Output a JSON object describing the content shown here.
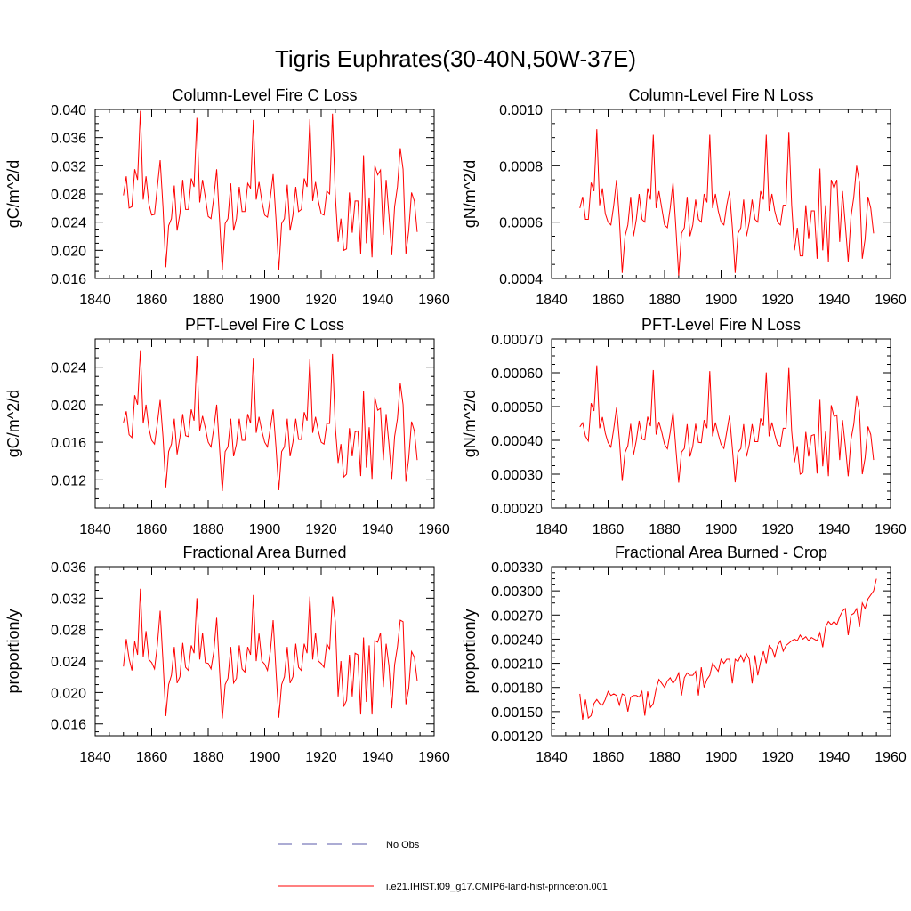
{
  "main_title": "Tigris Euphrates(30-40N,50W-37E)",
  "legend": [
    {
      "label": "No Obs",
      "color": "#5a5aa8",
      "dash": "dashed"
    },
    {
      "label": "i.e21.IHIST.f09_g17.CMIP6-land-hist-princeton.001",
      "color": "#ff0000",
      "dash": "solid"
    }
  ],
  "chart_data": [
    {
      "type": "line",
      "title": "Column-Level Fire C Loss",
      "ylabel": "gC/m^2/d",
      "xlim": [
        1840,
        1960
      ],
      "ylim": [
        0.016,
        0.04
      ],
      "xticks": [
        "1840",
        "1860",
        "1880",
        "1900",
        "1920",
        "1940",
        "1960"
      ],
      "yticks": [
        "0.016",
        "0.020",
        "0.024",
        "0.028",
        "0.032",
        "0.036",
        "0.040"
      ],
      "x_start": 1850,
      "series": [
        {
          "color": "#ff0000",
          "values": [
            0.0278,
            0.0305,
            0.026,
            0.0262,
            0.0315,
            0.03,
            0.0398,
            0.0272,
            0.0305,
            0.0266,
            0.025,
            0.0251,
            0.029,
            0.0328,
            0.0262,
            0.0176,
            0.0235,
            0.0245,
            0.0292,
            0.0228,
            0.0252,
            0.03,
            0.0258,
            0.0258,
            0.0302,
            0.029,
            0.0388,
            0.0268,
            0.03,
            0.0275,
            0.0248,
            0.0245,
            0.0275,
            0.0315,
            0.0245,
            0.0172,
            0.0238,
            0.0245,
            0.0295,
            0.0228,
            0.0245,
            0.029,
            0.0255,
            0.0255,
            0.0295,
            0.0288,
            0.0385,
            0.0272,
            0.0297,
            0.027,
            0.025,
            0.0247,
            0.0275,
            0.0308,
            0.0245,
            0.0172,
            0.0238,
            0.0245,
            0.0293,
            0.0228,
            0.025,
            0.029,
            0.0255,
            0.0258,
            0.0302,
            0.029,
            0.0386,
            0.027,
            0.0297,
            0.027,
            0.0252,
            0.025,
            0.0284,
            0.028,
            0.0394,
            0.0278,
            0.0212,
            0.0245,
            0.02,
            0.0202,
            0.0282,
            0.0225,
            0.027,
            0.027,
            0.0195,
            0.0335,
            0.021,
            0.0275,
            0.019,
            0.032,
            0.0307,
            0.0314,
            0.0222,
            0.03,
            0.025,
            0.0193,
            0.0262,
            0.029,
            0.0345,
            0.0315,
            0.0195,
            0.0228,
            0.0282,
            0.027,
            0.0226
          ]
        }
      ]
    },
    {
      "type": "line",
      "title": "Column-Level Fire N Loss",
      "ylabel": "gN/m^2/d",
      "xlim": [
        1840,
        1960
      ],
      "ylim": [
        0.0004,
        0.001
      ],
      "xticks": [
        "1840",
        "1860",
        "1880",
        "1900",
        "1920",
        "1940",
        "1960"
      ],
      "yticks": [
        "0.0004",
        "0.0006",
        "0.0008",
        "0.0010"
      ],
      "x_start": 1850,
      "series": [
        {
          "color": "#ff0000",
          "values": [
            0.00065,
            0.00069,
            0.00061,
            0.00061,
            0.00074,
            0.00071,
            0.00093,
            0.00066,
            0.00072,
            0.00063,
            0.0006,
            0.00059,
            0.00066,
            0.00075,
            0.00061,
            0.00042,
            0.00055,
            0.00059,
            0.00069,
            0.00055,
            0.00061,
            0.0007,
            0.00061,
            0.0006,
            0.00072,
            0.00068,
            0.00091,
            0.00065,
            0.00071,
            0.00065,
            0.00059,
            0.00058,
            0.00065,
            0.00074,
            0.00058,
            0.00041,
            0.00056,
            0.00058,
            0.00069,
            0.00055,
            0.00059,
            0.00068,
            0.00061,
            0.0006,
            0.0007,
            0.00067,
            0.00091,
            0.00065,
            0.0007,
            0.00064,
            0.0006,
            0.00059,
            0.00066,
            0.00071,
            0.00058,
            0.00042,
            0.00056,
            0.00058,
            0.00068,
            0.00055,
            0.0006,
            0.00068,
            0.00061,
            0.0006,
            0.00071,
            0.00068,
            0.00091,
            0.00064,
            0.0007,
            0.00064,
            0.0006,
            0.00059,
            0.00066,
            0.00066,
            0.00092,
            0.00066,
            0.0005,
            0.00058,
            0.00048,
            0.00048,
            0.00066,
            0.00054,
            0.00064,
            0.00064,
            0.00047,
            0.00079,
            0.0005,
            0.00066,
            0.00046,
            0.00075,
            0.00072,
            0.00075,
            0.00053,
            0.00071,
            0.00059,
            0.00046,
            0.00062,
            0.00069,
            0.0008,
            0.00074,
            0.00047,
            0.00054,
            0.00069,
            0.00065,
            0.00056
          ]
        }
      ]
    },
    {
      "type": "line",
      "title": "PFT-Level Fire C Loss",
      "ylabel": "gC/m^2/d",
      "xlim": [
        1840,
        1960
      ],
      "ylim": [
        0.009,
        0.027
      ],
      "xticks": [
        "1840",
        "1860",
        "1880",
        "1900",
        "1920",
        "1940",
        "1960"
      ],
      "yticks": [
        "0.012",
        "0.016",
        "0.020",
        "0.024"
      ],
      "x_start": 1850,
      "series": [
        {
          "color": "#ff0000",
          "values": [
            0.0181,
            0.0193,
            0.0168,
            0.0165,
            0.021,
            0.02,
            0.0258,
            0.018,
            0.02,
            0.0175,
            0.0162,
            0.0158,
            0.018,
            0.0205,
            0.0166,
            0.0112,
            0.015,
            0.0158,
            0.0185,
            0.0147,
            0.0165,
            0.019,
            0.0167,
            0.0166,
            0.0195,
            0.0183,
            0.0252,
            0.0172,
            0.0188,
            0.0175,
            0.016,
            0.0155,
            0.0175,
            0.02,
            0.0155,
            0.0108,
            0.015,
            0.0155,
            0.0185,
            0.0145,
            0.0158,
            0.0185,
            0.0162,
            0.0162,
            0.019,
            0.018,
            0.025,
            0.017,
            0.0187,
            0.0172,
            0.016,
            0.0155,
            0.0175,
            0.0195,
            0.0155,
            0.0109,
            0.015,
            0.0155,
            0.0185,
            0.0145,
            0.016,
            0.0185,
            0.0163,
            0.0163,
            0.0192,
            0.0183,
            0.0249,
            0.017,
            0.0187,
            0.0172,
            0.016,
            0.0158,
            0.018,
            0.018,
            0.0254,
            0.0176,
            0.0138,
            0.0158,
            0.0123,
            0.0126,
            0.0175,
            0.0145,
            0.0171,
            0.0172,
            0.0124,
            0.0215,
            0.0133,
            0.0176,
            0.0121,
            0.0208,
            0.0194,
            0.0196,
            0.0141,
            0.019,
            0.0158,
            0.0121,
            0.0166,
            0.0185,
            0.0223,
            0.02,
            0.0118,
            0.0143,
            0.0182,
            0.0172,
            0.0141
          ]
        }
      ]
    },
    {
      "type": "line",
      "title": "PFT-Level Fire N Loss",
      "ylabel": "gN/m^2/d",
      "xlim": [
        1840,
        1960
      ],
      "ylim": [
        0.0002,
        0.0007
      ],
      "xticks": [
        "1840",
        "1860",
        "1880",
        "1900",
        "1920",
        "1940",
        "1960"
      ],
      "yticks": [
        "0.00020",
        "0.00030",
        "0.00040",
        "0.00050",
        "0.00060",
        "0.00070"
      ],
      "x_start": 1850,
      "series": [
        {
          "color": "#ff0000",
          "values": [
            0.00044,
            0.000452,
            0.000412,
            0.000398,
            0.00051,
            0.000487,
            0.000622,
            0.000436,
            0.000469,
            0.000421,
            0.000393,
            0.00038,
            0.000434,
            0.000497,
            0.000402,
            0.00028,
            0.000364,
            0.000384,
            0.000449,
            0.000357,
            0.0004,
            0.000458,
            0.000404,
            0.000401,
            0.00047,
            0.000442,
            0.000608,
            0.000417,
            0.000455,
            0.000424,
            0.000388,
            0.000375,
            0.000424,
            0.000484,
            0.000375,
            0.000275,
            0.000365,
            0.000376,
            0.000448,
            0.000352,
            0.000383,
            0.000449,
            0.000394,
            0.000393,
            0.00046,
            0.000436,
            0.000605,
            0.000412,
            0.000453,
            0.000418,
            0.000388,
            0.000376,
            0.000424,
            0.000473,
            0.000376,
            0.000276,
            0.000365,
            0.000376,
            0.000448,
            0.000352,
            0.000388,
            0.000448,
            0.000396,
            0.000396,
            0.000465,
            0.000443,
            0.000601,
            0.000412,
            0.000453,
            0.000417,
            0.000388,
            0.000383,
            0.000436,
            0.000436,
            0.000614,
            0.000427,
            0.000335,
            0.000383,
            0.0003,
            0.000305,
            0.000425,
            0.000352,
            0.000414,
            0.000417,
            0.000302,
            0.00052,
            0.000323,
            0.000426,
            0.000294,
            0.000504,
            0.00047,
            0.000475,
            0.000342,
            0.00046,
            0.000383,
            0.000294,
            0.000403,
            0.000448,
            0.000532,
            0.000486,
            0.0003,
            0.000348,
            0.000441,
            0.000417,
            0.000342
          ]
        }
      ]
    },
    {
      "type": "line",
      "title": "Fractional Area Burned",
      "ylabel": "proportion/y",
      "xlim": [
        1840,
        1960
      ],
      "ylim": [
        0.0145,
        0.036
      ],
      "xticks": [
        "1840",
        "1860",
        "1880",
        "1900",
        "1920",
        "1940",
        "1960"
      ],
      "yticks": [
        "0.016",
        "0.020",
        "0.024",
        "0.028",
        "0.032",
        "0.036"
      ],
      "x_start": 1850,
      "series": [
        {
          "color": "#ff0000",
          "values": [
            0.0233,
            0.0268,
            0.0243,
            0.0228,
            0.0265,
            0.0248,
            0.0332,
            0.0245,
            0.0278,
            0.0242,
            0.0238,
            0.023,
            0.026,
            0.0304,
            0.024,
            0.017,
            0.021,
            0.0222,
            0.0258,
            0.0212,
            0.022,
            0.0263,
            0.0232,
            0.0228,
            0.026,
            0.025,
            0.032,
            0.0242,
            0.0276,
            0.0238,
            0.0237,
            0.023,
            0.0252,
            0.0295,
            0.023,
            0.0167,
            0.021,
            0.0218,
            0.0258,
            0.0212,
            0.0218,
            0.026,
            0.023,
            0.0226,
            0.0258,
            0.0248,
            0.0324,
            0.024,
            0.0275,
            0.024,
            0.0236,
            0.0228,
            0.0252,
            0.0292,
            0.0228,
            0.0168,
            0.021,
            0.022,
            0.0258,
            0.0212,
            0.022,
            0.0262,
            0.0232,
            0.0228,
            0.0262,
            0.025,
            0.0322,
            0.0242,
            0.0276,
            0.024,
            0.0237,
            0.0232,
            0.0262,
            0.0255,
            0.0322,
            0.029,
            0.0195,
            0.024,
            0.0182,
            0.019,
            0.0248,
            0.0195,
            0.025,
            0.0248,
            0.0172,
            0.027,
            0.0188,
            0.026,
            0.0172,
            0.0266,
            0.0264,
            0.0276,
            0.0207,
            0.0262,
            0.0234,
            0.018,
            0.0235,
            0.0258,
            0.0292,
            0.029,
            0.0185,
            0.0205,
            0.0252,
            0.0245,
            0.0215
          ]
        }
      ]
    },
    {
      "type": "line",
      "title": "Fractional Area Burned - Crop",
      "ylabel": "proportion/y",
      "xlim": [
        1840,
        1960
      ],
      "ylim": [
        0.0012,
        0.0033
      ],
      "xticks": [
        "1840",
        "1860",
        "1880",
        "1900",
        "1920",
        "1940",
        "1960"
      ],
      "yticks": [
        "0.00120",
        "0.00150",
        "0.00180",
        "0.00210",
        "0.00240",
        "0.00270",
        "0.00300",
        "0.00330"
      ],
      "x_start": 1850,
      "series": [
        {
          "color": "#ff0000",
          "values": [
            0.00172,
            0.0014,
            0.00165,
            0.00142,
            0.00145,
            0.0016,
            0.00165,
            0.0016,
            0.00158,
            0.00165,
            0.00175,
            0.0017,
            0.00172,
            0.0017,
            0.00158,
            0.00172,
            0.0017,
            0.0015,
            0.00168,
            0.0017,
            0.0017,
            0.00168,
            0.00175,
            0.00145,
            0.00175,
            0.00155,
            0.0016,
            0.00178,
            0.0019,
            0.00185,
            0.0018,
            0.00188,
            0.00192,
            0.00185,
            0.0019,
            0.00198,
            0.0017,
            0.00192,
            0.00198,
            0.00195,
            0.00195,
            0.002,
            0.0017,
            0.00205,
            0.0018,
            0.0019,
            0.00195,
            0.0021,
            0.00205,
            0.002,
            0.00215,
            0.0021,
            0.00215,
            0.00215,
            0.00185,
            0.00215,
            0.00212,
            0.0022,
            0.00212,
            0.00222,
            0.00215,
            0.00185,
            0.0022,
            0.00195,
            0.00212,
            0.00225,
            0.0021,
            0.00232,
            0.00228,
            0.00218,
            0.00232,
            0.00238,
            0.00225,
            0.00232,
            0.00235,
            0.00238,
            0.0024,
            0.00238,
            0.00245,
            0.0024,
            0.00243,
            0.00238,
            0.00242,
            0.0024,
            0.00238,
            0.00248,
            0.0023,
            0.00255,
            0.00262,
            0.00258,
            0.00262,
            0.00258,
            0.00268,
            0.00275,
            0.00278,
            0.00245,
            0.0027,
            0.00272,
            0.00278,
            0.00255,
            0.00285,
            0.00278,
            0.0029,
            0.00295,
            0.003,
            0.00315
          ]
        }
      ]
    }
  ]
}
